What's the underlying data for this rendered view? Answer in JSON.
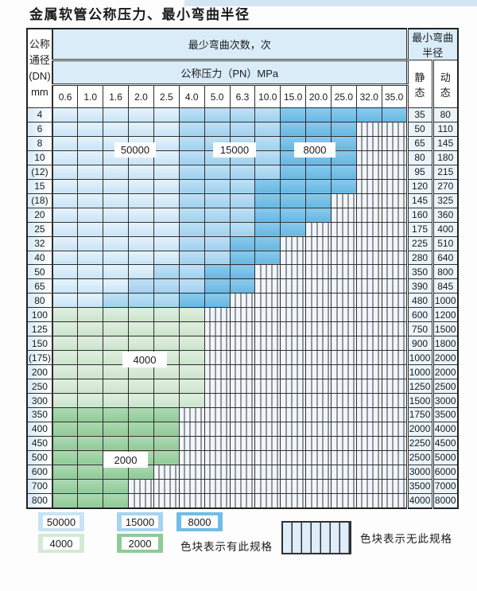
{
  "page_title": "金属软管公称压力、最小弯曲半径",
  "table": {
    "header": {
      "dn1": "公称",
      "dn2": "通径",
      "dn3": "(DN)",
      "dn4": "mm",
      "cycles_header": "最少弯曲次数，次",
      "pressure_header": "公称压力（PN）MPa",
      "radius_header": "最小弯曲半径",
      "static_label": "静 态",
      "dynamic_label": "动 态",
      "pressures": [
        "0.6",
        "1.0",
        "1.6",
        "2.0",
        "2.5",
        "4.0",
        "5.0",
        "6.3",
        "10.0",
        "15.0",
        "20.0",
        "25.0",
        "32.0",
        "35.0"
      ]
    },
    "cell_categories": {
      "a": "50000",
      "b": "15000",
      "c": "8000",
      "d": "4000",
      "e": "2000",
      "x": "no-spec"
    },
    "rows": [
      {
        "dn": "4",
        "cells": "aaaaabbbbccccc",
        "static": "35",
        "dynamic": "80"
      },
      {
        "dn": "6",
        "cells": "aaaaabbbbcccxx",
        "static": "50",
        "dynamic": "110"
      },
      {
        "dn": "8",
        "cells": "aaaaabbbbcccxx",
        "static": "65",
        "dynamic": "145"
      },
      {
        "dn": "10",
        "cells": "aaaaabbbbcccxx",
        "static": "80",
        "dynamic": "180"
      },
      {
        "dn": "(12)",
        "cells": "aaaaabbbbcccxx",
        "static": "95",
        "dynamic": "215"
      },
      {
        "dn": "15",
        "cells": "aaaaabbbccccxx",
        "static": "120",
        "dynamic": "270"
      },
      {
        "dn": "(18)",
        "cells": "aaaaabbbcccxxx",
        "static": "145",
        "dynamic": "325"
      },
      {
        "dn": "20",
        "cells": "aaaaabbbcccxxx",
        "static": "160",
        "dynamic": "360"
      },
      {
        "dn": "25",
        "cells": "aaaaabbbccxxxx",
        "static": "175",
        "dynamic": "400"
      },
      {
        "dn": "32",
        "cells": "aaaaabbccxxxxx",
        "static": "225",
        "dynamic": "510"
      },
      {
        "dn": "40",
        "cells": "aaaaabbccxxxxx",
        "static": "280",
        "dynamic": "640"
      },
      {
        "dn": "50",
        "cells": "aaaabbccxxxxxx",
        "static": "350",
        "dynamic": "800"
      },
      {
        "dn": "65",
        "cells": "aaabbbccxxxxxx",
        "static": "390",
        "dynamic": "845"
      },
      {
        "dn": "80",
        "cells": "aabbbccxxxxxxx",
        "static": "480",
        "dynamic": "1000"
      },
      {
        "dn": "100",
        "cells": "ddddddxxxxxxxx",
        "static": "600",
        "dynamic": "1200"
      },
      {
        "dn": "125",
        "cells": "ddddddxxxxxxxx",
        "static": "750",
        "dynamic": "1500"
      },
      {
        "dn": "150",
        "cells": "ddddddxxxxxxxx",
        "static": "900",
        "dynamic": "1800"
      },
      {
        "dn": "(175)",
        "cells": "ddddddxxxxxxxx",
        "static": "1000",
        "dynamic": "2000"
      },
      {
        "dn": "200",
        "cells": "ddddddxxxxxxxx",
        "static": "1000",
        "dynamic": "2000"
      },
      {
        "dn": "250",
        "cells": "ddddddxxxxxxxx",
        "static": "1250",
        "dynamic": "2500"
      },
      {
        "dn": "300",
        "cells": "ddddddxxxxxxxx",
        "static": "1500",
        "dynamic": "3000"
      },
      {
        "dn": "350",
        "cells": "eeeeexxxxxxxxx",
        "static": "1750",
        "dynamic": "3500"
      },
      {
        "dn": "400",
        "cells": "eeeeexxxxxxxxx",
        "static": "2000",
        "dynamic": "4000"
      },
      {
        "dn": "450",
        "cells": "eeeeexxxxxxxxx",
        "static": "2250",
        "dynamic": "4500"
      },
      {
        "dn": "500",
        "cells": "eeeeexxxxxxxxx",
        "static": "2500",
        "dynamic": "5000"
      },
      {
        "dn": "600",
        "cells": "eeeexxxxxxxxxx",
        "static": "3000",
        "dynamic": "6000"
      },
      {
        "dn": "700",
        "cells": "eeexxxxxxxxxxx",
        "static": "3500",
        "dynamic": "7000"
      },
      {
        "dn": "800",
        "cells": "eeexxxxxxxxxxx",
        "static": "4000",
        "dynamic": "8000"
      }
    ]
  },
  "overlays": {
    "labels": [
      {
        "text": "50000"
      },
      {
        "text": "15000"
      },
      {
        "text": "8000"
      },
      {
        "text": "4000"
      },
      {
        "text": "2000"
      }
    ]
  },
  "legend": {
    "swatches": [
      {
        "label": "50000",
        "color": "#c8e3f5"
      },
      {
        "label": "15000",
        "color": "#a5d4f0"
      },
      {
        "label": "8000",
        "color": "#6fbde7"
      },
      {
        "label": "4000",
        "color": "#d5e9d5"
      },
      {
        "label": "2000",
        "color": "#8fcb97"
      }
    ],
    "has_spec_note": "色块表示有此规格",
    "no_spec_note": "色块表示无此规格"
  },
  "colors": {
    "cycles_50000": "#c8e3f5",
    "cycles_15000": "#a5d4f0",
    "cycles_8000": "#6fbde7",
    "cycles_4000": "#d5e9d5",
    "cycles_2000": "#8fcb97",
    "no_spec_bg": "#f0f6fb",
    "header_band": "#d9ecf8",
    "grid_line": "#2f2f2f"
  }
}
